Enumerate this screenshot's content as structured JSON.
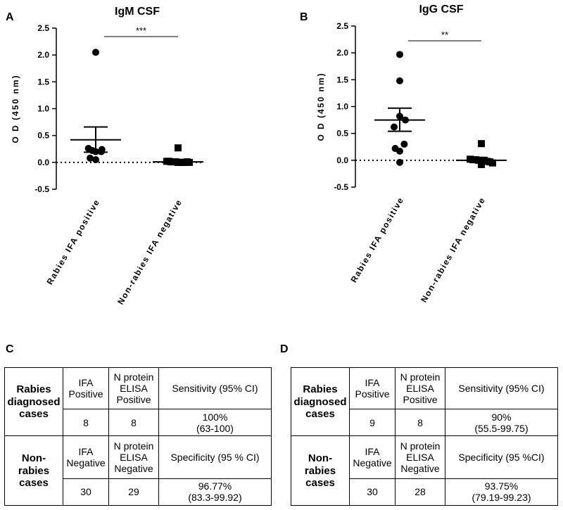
{
  "chart_data": [
    {
      "panel": "A",
      "type": "scatter",
      "title": "IgM CSF",
      "xlabel": "",
      "ylabel": "O D  (450 nm)",
      "ylim": [
        -0.5,
        2.5
      ],
      "yticks": [
        -0.5,
        0.0,
        0.5,
        1.0,
        1.5,
        2.0,
        2.5
      ],
      "ytick_labels": [
        "-0.5",
        "0.0",
        "0.5",
        "1.0",
        "1.5",
        "2.0",
        "2.5"
      ],
      "categories": [
        "Rabies IFA positive",
        "Non-rabies IFA negative"
      ],
      "series": [
        {
          "name": "Rabies IFA positive",
          "marker": "circle",
          "values": [
            2.05,
            0.26,
            0.22,
            0.2,
            0.24,
            0.05,
            0.08,
            0.2
          ],
          "offsets": [
            0,
            -0.13,
            -0.06,
            0.0,
            0.11,
            0.0,
            -0.1,
            0.1
          ],
          "mean": 0.42,
          "sem_low": 0.19,
          "sem_high": 0.66
        },
        {
          "name": "Non-rabies IFA negative",
          "marker": "square",
          "values": [
            0.27,
            0.02,
            0.02,
            0.01,
            0.01,
            0.01,
            0.0,
            0.0,
            0.0,
            0.0,
            0.01,
            0.0
          ],
          "offsets": [
            0,
            -0.2,
            -0.16,
            -0.12,
            -0.08,
            -0.04,
            0.0,
            0.04,
            0.08,
            0.12,
            0.16,
            0.2
          ],
          "mean": 0.01,
          "sem_low": 0.0,
          "sem_high": 0.02
        }
      ],
      "reference_line": 0,
      "significance": "***"
    },
    {
      "panel": "B",
      "type": "scatter",
      "title": "IgG CSF",
      "xlabel": "",
      "ylabel": "O D  (450 nm)",
      "ylim": [
        -0.5,
        2.5
      ],
      "yticks": [
        -0.5,
        0.0,
        0.5,
        1.0,
        1.5,
        2.0,
        2.5
      ],
      "ytick_labels": [
        "-0.5",
        "0.0",
        "0.5",
        "1.0",
        "1.5",
        "2.0",
        "2.5"
      ],
      "categories": [
        "Rabies IFA positive",
        "Non-rabies IFA negative"
      ],
      "series": [
        {
          "name": "Rabies IFA positive",
          "marker": "circle",
          "values": [
            1.97,
            1.48,
            0.82,
            0.75,
            0.62,
            0.3,
            0.22,
            0.17,
            -0.04
          ],
          "offsets": [
            0,
            0,
            0.0,
            0.1,
            -0.1,
            0.08,
            -0.08,
            0.0,
            0.0
          ],
          "mean": 0.75,
          "sem_low": 0.54,
          "sem_high": 0.97
        },
        {
          "name": "Non-rabies IFA negative",
          "marker": "square",
          "values": [
            0.31,
            0.02,
            0.01,
            0.01,
            0.0,
            0.0,
            0.0,
            -0.02,
            -0.03,
            -0.05,
            -0.08
          ],
          "offsets": [
            0,
            -0.2,
            -0.15,
            -0.1,
            -0.05,
            0.0,
            0.05,
            0.1,
            0.15,
            0.2,
            0.0
          ],
          "mean": 0.0,
          "sem_low": -0.02,
          "sem_high": 0.02
        }
      ],
      "reference_line": 0,
      "significance": "**"
    }
  ],
  "tables": {
    "C": {
      "label": "C",
      "rows": [
        [
          "Rabies diagnosed cases",
          "IFA Positive",
          "N protein ELISA Positive",
          "Sensitivity (95% CI)"
        ],
        [
          "",
          "8",
          "8",
          "100%",
          "(63-100)"
        ],
        [
          "Non-rabies cases",
          "IFA Negative",
          "N protein ELISA Negative",
          "Specificity (95 % CI)"
        ],
        [
          "",
          "30",
          "29",
          "96.77%",
          "(83.3-99.92)"
        ]
      ]
    },
    "D": {
      "label": "D",
      "rows": [
        [
          "Rabies diagnosed cases",
          "IFA Positive",
          "N protein ELISA Positive",
          "Sensitivity (95% CI)"
        ],
        [
          "",
          "9",
          "8",
          "90%",
          "(55.5-99.75)"
        ],
        [
          "Non-rabies cases",
          "IFA Negative",
          "N protein ELISA Negative",
          "Specificity (95 %CI)"
        ],
        [
          "",
          "30",
          "28",
          "93.75%",
          "(79.19-99.23)"
        ]
      ]
    }
  }
}
